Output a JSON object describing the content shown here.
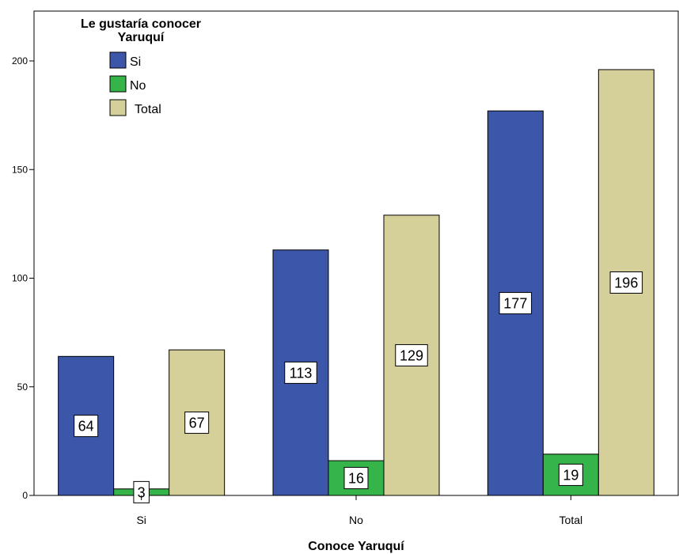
{
  "chart_data": {
    "type": "bar",
    "categories": [
      "Si",
      "No",
      "Total"
    ],
    "series": [
      {
        "name": "Si",
        "values": [
          64,
          113,
          177
        ],
        "color": "#3c57aa"
      },
      {
        "name": "No",
        "values": [
          3,
          16,
          19
        ],
        "color": "#35b44a"
      },
      {
        "name": "Total",
        "values": [
          67,
          129,
          196
        ],
        "color": "#d5d09a"
      }
    ],
    "xlabel": "Conoce Yaruquí",
    "ylabel": "",
    "ylim": [
      0,
      223
    ],
    "yticks": [
      0,
      50,
      100,
      150,
      200
    ],
    "legend_title": [
      "Le gustaría conocer",
      "Yaruquí"
    ],
    "legend_position": "top-left",
    "grid": false,
    "data_labels": true
  }
}
